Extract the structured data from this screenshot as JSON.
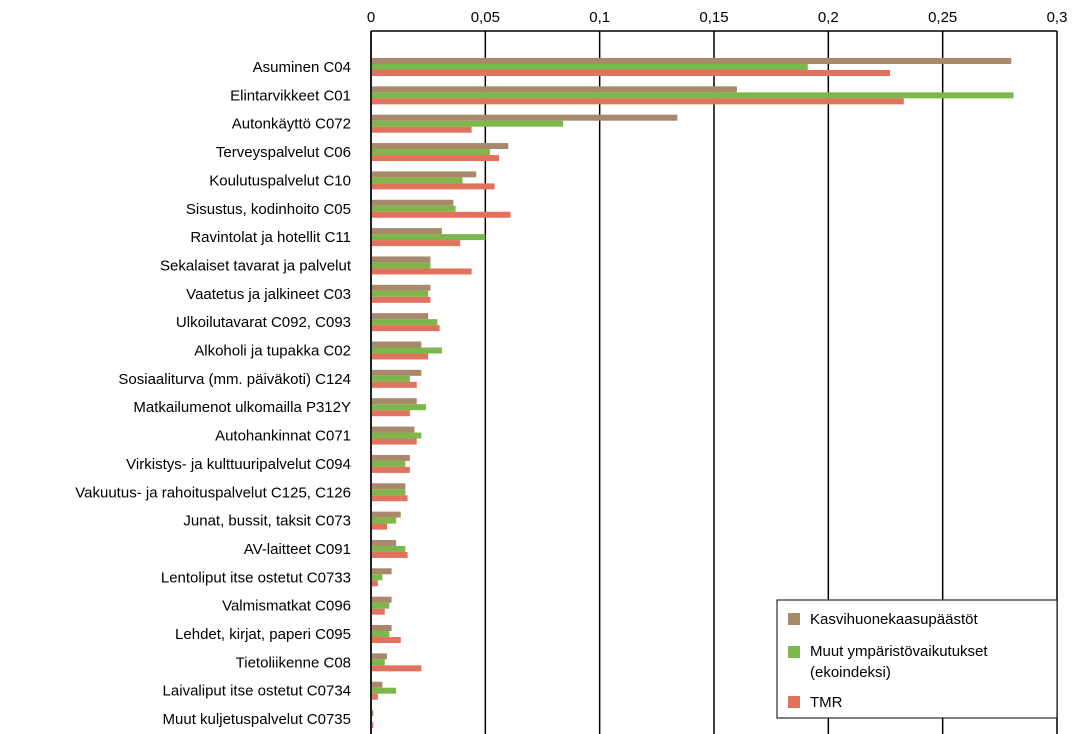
{
  "chart_data": {
    "type": "bar",
    "orientation": "horizontal",
    "title": "",
    "xlabel": "",
    "ylabel": "",
    "xlim": [
      0,
      0.3
    ],
    "x_ticks": [
      {
        "value": 0,
        "label": "0"
      },
      {
        "value": 0.05,
        "label": "0,05"
      },
      {
        "value": 0.1,
        "label": "0,1"
      },
      {
        "value": 0.15,
        "label": "0,15"
      },
      {
        "value": 0.2,
        "label": "0,2"
      },
      {
        "value": 0.25,
        "label": "0,25"
      },
      {
        "value": 0.3,
        "label": "0,3"
      }
    ],
    "x_axis_position": "top",
    "grid": "vertical",
    "legend_position": "bottom-right",
    "categories": [
      "Asuminen C04",
      "Elintarvikkeet C01",
      "Autonkäyttö C072",
      "Terveyspalvelut C06",
      "Koulutuspalvelut C10",
      "Sisustus, kodinhoito C05",
      "Ravintolat ja hotellit C11",
      "Sekalaiset tavarat ja palvelut",
      "Vaatetus ja jalkineet C03",
      "Ulkoilutavarat C092, C093",
      "Alkoholi ja tupakka C02",
      "Sosiaaliturva (mm. päiväkoti) C124",
      "Matkailumenot ulkomailla P312Y",
      "Autohankinnat C071",
      "Virkistys- ja kulttuuripalvelut C094",
      "Vakuutus- ja rahoituspalvelut C125, C126",
      "Junat, bussit, taksit C073",
      "AV-laitteet C091",
      "Lentoliput itse ostetut C0733",
      "Valmismatkat C096",
      "Lehdet, kirjat, paperi C095",
      "Tietoliikenne C08",
      "Laivaliput itse ostetut C0734",
      "Muut kuljetuspalvelut C0735"
    ],
    "series": [
      {
        "name": "Kasvihuonekaasupäästöt",
        "color": "#a8896c",
        "values": [
          0.28,
          0.16,
          0.134,
          0.06,
          0.046,
          0.036,
          0.031,
          0.026,
          0.026,
          0.025,
          0.022,
          0.022,
          0.02,
          0.019,
          0.017,
          0.015,
          0.013,
          0.011,
          0.009,
          0.009,
          0.009,
          0.007,
          0.005,
          0.001
        ]
      },
      {
        "name": "Muut ympäristövaikutukset (ekoindeksi)",
        "name_lines": [
          "Muut ympäristövaikutukset",
          "(ekoindeksi)"
        ],
        "color": "#7db64b",
        "values": [
          0.191,
          0.281,
          0.084,
          0.052,
          0.04,
          0.037,
          0.05,
          0.026,
          0.025,
          0.029,
          0.031,
          0.017,
          0.024,
          0.022,
          0.015,
          0.015,
          0.011,
          0.015,
          0.005,
          0.008,
          0.008,
          0.006,
          0.011,
          0.0
        ]
      },
      {
        "name": "TMR",
        "color": "#e0725e",
        "values": [
          0.227,
          0.233,
          0.044,
          0.056,
          0.054,
          0.061,
          0.039,
          0.044,
          0.026,
          0.03,
          0.025,
          0.02,
          0.017,
          0.02,
          0.017,
          0.016,
          0.007,
          0.016,
          0.003,
          0.006,
          0.013,
          0.022,
          0.003,
          0.001
        ]
      }
    ]
  }
}
